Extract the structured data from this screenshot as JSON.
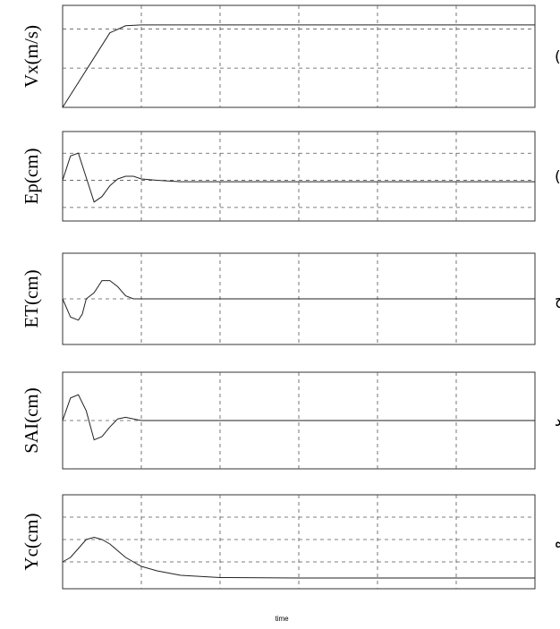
{
  "chart_data": {
    "type": "line",
    "xlabel": "time",
    "x_range": [
      0,
      6
    ],
    "subplots": [
      {
        "tag": "الف )",
        "ylabel": "Vx(m/s)",
        "hlines": [
          1,
          2
        ],
        "ylim": [
          0,
          2.6
        ],
        "series": [
          {
            "x": [
              0,
              0.6,
              0.8,
              1.0,
              6.0
            ],
            "y": [
              0,
              1.9,
              2.08,
              2.1,
              2.1
            ]
          }
        ]
      },
      {
        "tag": "ب )",
        "ylabel": "Ep(cm)",
        "hlines": [
          -1,
          0,
          1
        ],
        "ylim": [
          -1.5,
          1.8
        ],
        "series": [
          {
            "x": [
              0,
              0.1,
              0.2,
              0.3,
              0.4,
              0.5,
              0.6,
              0.7,
              0.8,
              0.9,
              1.0,
              1.2,
              1.5,
              6.0
            ],
            "y": [
              0,
              0.9,
              1.0,
              0.1,
              -0.8,
              -0.6,
              -0.2,
              0.05,
              0.15,
              0.15,
              0.05,
              0.0,
              -0.05,
              -0.05
            ]
          }
        ]
      },
      {
        "tag": "( ج",
        "ylabel": "ET(cm)",
        "hlines": [
          0
        ],
        "ylim": [
          -1.5,
          1.5
        ],
        "series": [
          {
            "x": [
              0,
              0.1,
              0.2,
              0.25,
              0.3,
              0.4,
              0.5,
              0.6,
              0.7,
              0.8,
              0.9,
              1.0,
              6.0
            ],
            "y": [
              0,
              -0.6,
              -0.7,
              -0.5,
              0.0,
              0.2,
              0.6,
              0.6,
              0.4,
              0.1,
              0.0,
              0.0,
              0.0
            ]
          }
        ]
      },
      {
        "tag": "( د",
        "ylabel": "SAI(cm)",
        "hlines": [
          0
        ],
        "ylim": [
          -1.5,
          1.5
        ],
        "series": [
          {
            "x": [
              0,
              0.1,
              0.2,
              0.3,
              0.4,
              0.5,
              0.6,
              0.7,
              0.8,
              0.9,
              1.0,
              6.0
            ],
            "y": [
              0,
              0.7,
              0.8,
              0.3,
              -0.6,
              -0.5,
              -0.2,
              0.05,
              0.1,
              0.05,
              0.0,
              0.0
            ]
          }
        ]
      },
      {
        "tag": "( ه",
        "ylabel": "Yc(cm)",
        "hlines": [
          0,
          1,
          2
        ],
        "ylim": [
          -1.2,
          3.0
        ],
        "series": [
          {
            "x": [
              0,
              0.1,
              0.2,
              0.3,
              0.4,
              0.5,
              0.6,
              0.7,
              0.8,
              1.0,
              1.2,
              1.5,
              2.0,
              3.0,
              4.0,
              6.0
            ],
            "y": [
              0,
              0.2,
              0.6,
              1.0,
              1.1,
              1.0,
              0.8,
              0.5,
              0.2,
              -0.2,
              -0.4,
              -0.6,
              -0.7,
              -0.72,
              -0.72,
              -0.72
            ]
          }
        ]
      }
    ]
  }
}
